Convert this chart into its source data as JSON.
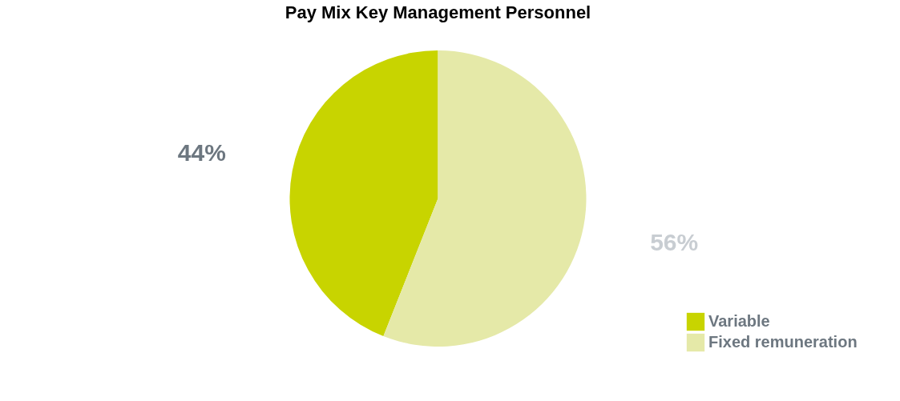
{
  "chart_data": {
    "type": "pie",
    "title": "Pay Mix Key Management Personnel",
    "categories": [
      "Variable",
      "Fixed remuneration"
    ],
    "values": [
      44,
      56
    ],
    "colors": [
      "#c8d400",
      "#e5e9a8"
    ],
    "value_labels": [
      "44%",
      "56%"
    ],
    "legend": "bottom right"
  }
}
